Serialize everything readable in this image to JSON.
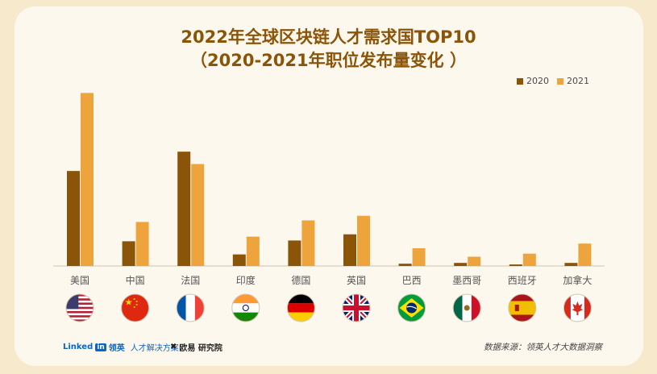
{
  "title_line1": "2022年全球区块链人才需求国TOP10",
  "title_line2": "（2020-2021年职位发布量变化 ）",
  "colors": {
    "s2020": "#8a5509",
    "s2021": "#eda43d",
    "title": "#8a5509",
    "axis": "#d9cdb8"
  },
  "chart_data": {
    "type": "bar",
    "title": "2022年全球区块链人才需求国TOP10（2020-2021年职位发布量变化 ）",
    "categories": [
      "美国",
      "中国",
      "法国",
      "印度",
      "德国",
      "英国",
      "巴西",
      "墨西哥",
      "西班牙",
      "加拿大"
    ],
    "series": [
      {
        "name": "2020",
        "values": [
          123,
          32,
          148,
          15,
          33,
          41,
          3,
          4,
          2,
          4
        ]
      },
      {
        "name": "2021",
        "values": [
          224,
          57,
          132,
          38,
          59,
          65,
          23,
          12,
          16,
          29
        ]
      }
    ],
    "ylim": [
      0,
      240
    ],
    "grid": false,
    "legend": "top-right",
    "xlabel": "",
    "ylabel": ""
  },
  "flags": [
    "us",
    "cn",
    "fr",
    "in",
    "de",
    "gb",
    "br",
    "mx",
    "es",
    "ca"
  ],
  "footer": {
    "linkedin_word": "Linked",
    "linkedin_in": "in",
    "linkedin_cn": "领英",
    "linkedin_sub": "人才解决方案",
    "brand2_icon": "✖",
    "brand2": "欧易 研究院",
    "source": "数据来源：领英人才大数据洞察"
  }
}
